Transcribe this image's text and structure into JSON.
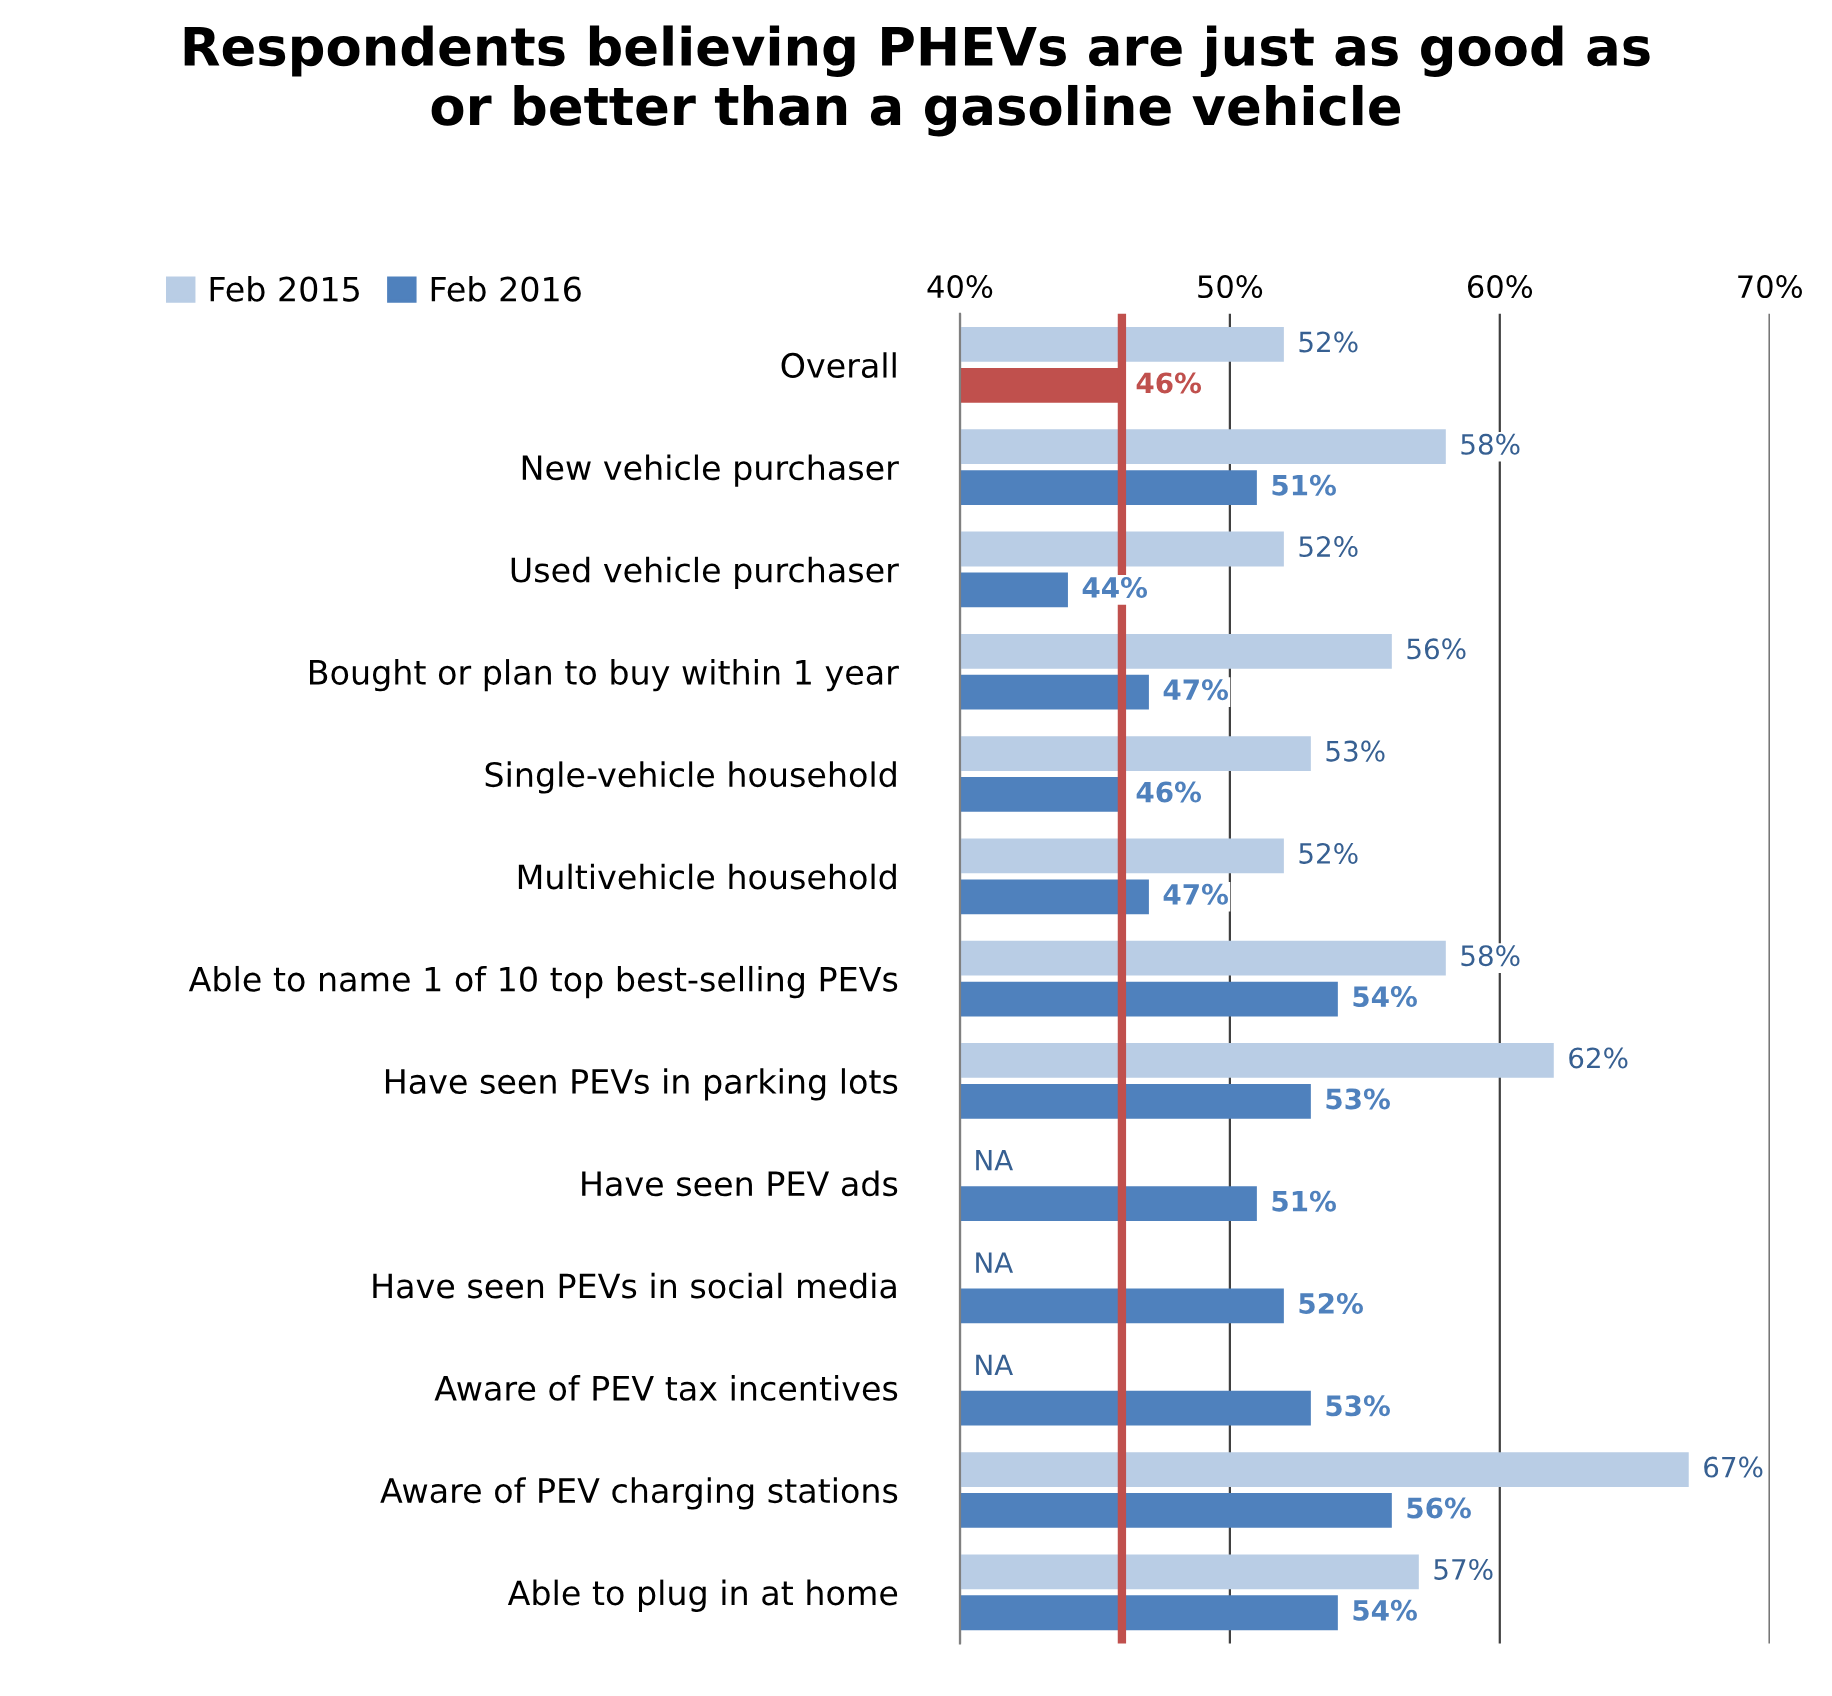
{
  "chart_data": {
    "type": "bar",
    "orientation": "horizontal",
    "title": "Respondents believing PHEVs are just as good as\nor better than a gasoline vehicle",
    "categories": [
      "Overall",
      "New vehicle purchaser",
      "Used vehicle purchaser",
      "Bought or plan to buy within 1 year",
      "Single-vehicle household",
      "Multivehicle household",
      "Able to name 1 of 10 top best-selling PEVs",
      "Have seen PEVs in parking lots",
      "Have seen PEV ads",
      "Have seen PEVs in social media",
      "Aware of PEV tax incentives",
      "Aware of PEV charging stations",
      "Able to plug in at home"
    ],
    "series": [
      {
        "name": "Feb 2015",
        "color": "#b9cde5",
        "values": [
          52,
          58,
          52,
          56,
          53,
          52,
          58,
          62,
          null,
          null,
          null,
          67,
          57
        ],
        "value_labels": [
          "52%",
          "58%",
          "52%",
          "56%",
          "53%",
          "52%",
          "58%",
          "62%",
          "NA",
          "NA",
          "NA",
          "67%",
          "57%"
        ]
      },
      {
        "name": "Feb 2016",
        "color": "#4f81bd",
        "colors": [
          "#c0504d",
          "#4f81bd",
          "#4f81bd",
          "#4f81bd",
          "#4f81bd",
          "#4f81bd",
          "#4f81bd",
          "#4f81bd",
          "#4f81bd",
          "#4f81bd",
          "#4f81bd",
          "#4f81bd",
          "#4f81bd"
        ],
        "values": [
          46,
          51,
          44,
          47,
          46,
          47,
          54,
          53,
          51,
          52,
          53,
          56,
          54
        ],
        "value_labels": [
          "46%",
          "51%",
          "44%",
          "47%",
          "46%",
          "47%",
          "54%",
          "53%",
          "51%",
          "52%",
          "53%",
          "56%",
          "54%"
        ]
      }
    ],
    "xlim": [
      40,
      70
    ],
    "xticks": [
      {
        "value": 40,
        "label": "40%"
      },
      {
        "value": 50,
        "label": "50%"
      },
      {
        "value": 60,
        "label": "60%"
      },
      {
        "value": 70,
        "label": "70%"
      }
    ],
    "ref_lines": [
      {
        "axis": "x",
        "value": 46,
        "color": "#c0504d"
      }
    ],
    "grid": "x",
    "legend": "top left"
  }
}
